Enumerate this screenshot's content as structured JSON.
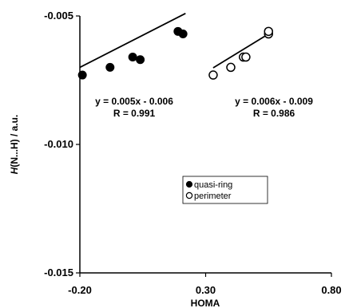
{
  "chart_data": {
    "type": "scatter",
    "xlabel": "HOMA",
    "ylabel_italic": "H",
    "ylabel_rest": "(N...H) / a.u.",
    "xlim": [
      -0.2,
      0.8
    ],
    "ylim": [
      -0.015,
      -0.005
    ],
    "x_ticks": [
      -0.2,
      0.3,
      0.8
    ],
    "x_tick_labels": [
      "-0.20",
      "0.30",
      "0.80"
    ],
    "y_ticks": [
      -0.005,
      -0.01,
      -0.015
    ],
    "y_tick_labels": [
      "-0.005",
      "-0.010",
      "-0.015"
    ],
    "grid": false,
    "legend_position": "center-right",
    "series": [
      {
        "name": "quasi-ring",
        "marker": "filled-circle",
        "color": "#000000",
        "points": [
          [
            -0.19,
            -0.0073
          ],
          [
            -0.08,
            -0.007
          ],
          [
            0.01,
            -0.0066
          ],
          [
            0.04,
            -0.0067
          ],
          [
            0.19,
            -0.0056
          ],
          [
            0.21,
            -0.0057
          ]
        ],
        "fit": {
          "slope": 0.005,
          "intercept": -0.006,
          "x_range": [
            -0.2,
            0.22
          ]
        },
        "equation": "y = 0.005x - 0.006",
        "r_label": "R = 0.991"
      },
      {
        "name": "perimeter",
        "marker": "open-circle",
        "color": "#000000",
        "points": [
          [
            0.33,
            -0.0073
          ],
          [
            0.4,
            -0.007
          ],
          [
            0.45,
            -0.0066
          ],
          [
            0.46,
            -0.0066
          ],
          [
            0.55,
            -0.0057
          ],
          [
            0.55,
            -0.0056
          ]
        ],
        "fit": {
          "slope": 0.006,
          "intercept": -0.009,
          "x_range": [
            0.33,
            0.56
          ]
        },
        "equation": "y = 0.006x - 0.009",
        "r_label": "R = 0.986"
      }
    ]
  }
}
